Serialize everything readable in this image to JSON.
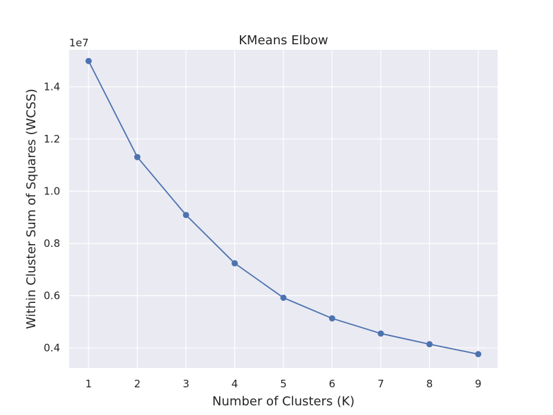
{
  "chart_data": {
    "type": "line",
    "title": "KMeans Elbow",
    "xlabel": "Number of Clusters (K)",
    "ylabel": "Within Cluster Sum of Squares (WCSS)",
    "y_offset_label": "1e7",
    "x": [
      1,
      2,
      3,
      4,
      5,
      6,
      7,
      8,
      9
    ],
    "xticks": [
      "1",
      "2",
      "3",
      "4",
      "5",
      "6",
      "7",
      "8",
      "9"
    ],
    "yticks": [
      {
        "value": 0.4,
        "label": "0.4"
      },
      {
        "value": 0.6,
        "label": "0.6"
      },
      {
        "value": 0.8,
        "label": "0.8"
      },
      {
        "value": 1.0,
        "label": "1.0"
      },
      {
        "value": 1.2,
        "label": "1.2"
      },
      {
        "value": 1.4,
        "label": "1.4"
      }
    ],
    "xlim": [
      0.6,
      9.4
    ],
    "ylim": [
      0.323,
      1.542
    ],
    "series": [
      {
        "values": [
          1.499,
          1.131,
          0.909,
          0.724,
          0.592,
          0.513,
          0.455,
          0.414,
          0.376
        ]
      }
    ],
    "grid": true,
    "colors": {
      "plot_background": "#eaeaf2",
      "grid": "#ffffff",
      "line": "#4c72b0",
      "text": "#262626"
    }
  }
}
